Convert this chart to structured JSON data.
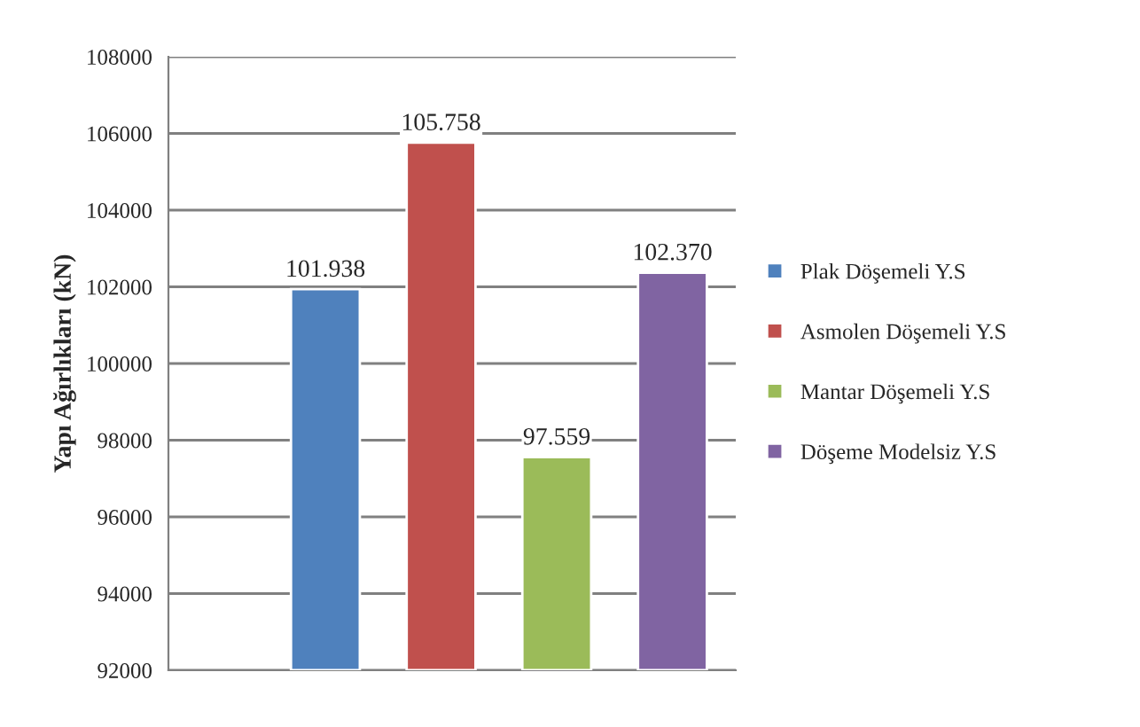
{
  "chart_data": {
    "type": "bar",
    "ylabel": "Yapı Ağırlıkları (kN)",
    "categories": [
      null
    ],
    "series": [
      {
        "name": "Plak Döşemeli Y.S",
        "color": "#4f81bd",
        "values": [
          101938
        ],
        "value_labels": [
          "101.938"
        ]
      },
      {
        "name": "Asmolen Döşemeli Y.S",
        "color": "#c0504d",
        "values": [
          105758
        ],
        "value_labels": [
          "105.758"
        ]
      },
      {
        "name": "Mantar Döşemeli Y.S",
        "color": "#9bbb59",
        "values": [
          97559
        ],
        "value_labels": [
          "97.559"
        ]
      },
      {
        "name": "Döşeme Modelsiz Y.S",
        "color": "#8064a2",
        "values": [
          102370
        ],
        "value_labels": [
          "102.370"
        ]
      }
    ],
    "ylim": [
      92000,
      108000
    ],
    "yticks": [
      92000,
      94000,
      96000,
      98000,
      100000,
      102000,
      104000,
      106000,
      108000
    ],
    "grid": "y",
    "legend": "right"
  }
}
